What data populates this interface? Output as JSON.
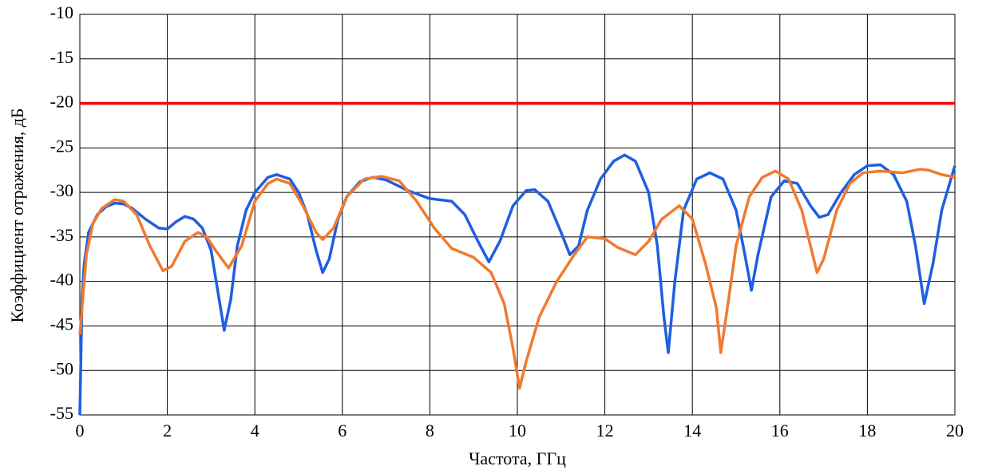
{
  "chart_data": {
    "type": "line",
    "xlabel": "Частота, ГГц",
    "ylabel": "Коэффициент отражения, дБ",
    "xlim": [
      0,
      20
    ],
    "xticks": [
      0,
      2,
      4,
      6,
      8,
      10,
      12,
      14,
      16,
      18,
      20
    ],
    "ylim": [
      -55,
      -10
    ],
    "yticks": [
      -55,
      -50,
      -45,
      -40,
      -35,
      -30,
      -25,
      -20,
      -15,
      -10
    ],
    "grid": true,
    "series": [
      {
        "color": "#1f5fe0",
        "x": [
          0,
          0.05,
          0.1,
          0.2,
          0.4,
          0.6,
          0.8,
          1.0,
          1.2,
          1.5,
          1.8,
          2.0,
          2.2,
          2.4,
          2.6,
          2.8,
          3.0,
          3.15,
          3.3,
          3.45,
          3.6,
          3.8,
          4.0,
          4.3,
          4.5,
          4.8,
          5.0,
          5.2,
          5.4,
          5.55,
          5.7,
          5.9,
          6.1,
          6.4,
          6.7,
          7.0,
          7.5,
          8.0,
          8.5,
          8.8,
          9.1,
          9.35,
          9.6,
          9.9,
          10.2,
          10.4,
          10.7,
          11.0,
          11.2,
          11.4,
          11.6,
          11.9,
          12.2,
          12.45,
          12.7,
          13.0,
          13.2,
          13.35,
          13.45,
          13.6,
          13.8,
          14.1,
          14.4,
          14.7,
          15.0,
          15.2,
          15.35,
          15.5,
          15.8,
          16.1,
          16.4,
          16.7,
          16.9,
          17.1,
          17.4,
          17.7,
          18.0,
          18.3,
          18.6,
          18.9,
          19.1,
          19.3,
          19.5,
          19.7,
          20.0
        ],
        "values": [
          -55,
          -42,
          -38,
          -34.5,
          -32.5,
          -31.6,
          -31.2,
          -31.3,
          -31.8,
          -33,
          -34,
          -34.1,
          -33.3,
          -32.7,
          -33,
          -34,
          -36.5,
          -41,
          -45.5,
          -42,
          -36,
          -32,
          -30,
          -28.3,
          -28,
          -28.5,
          -30,
          -32.5,
          -36.5,
          -39,
          -37.5,
          -33,
          -30.5,
          -28.8,
          -28.3,
          -28.6,
          -29.8,
          -30.7,
          -31,
          -32.5,
          -35.5,
          -37.8,
          -35.5,
          -31.5,
          -29.8,
          -29.7,
          -31,
          -34.5,
          -37,
          -36,
          -32,
          -28.5,
          -26.5,
          -25.8,
          -26.5,
          -30,
          -36,
          -44,
          -48,
          -40,
          -32,
          -28.5,
          -27.8,
          -28.5,
          -32,
          -37,
          -41,
          -37,
          -30.5,
          -28.7,
          -29,
          -31.5,
          -32.8,
          -32.5,
          -30,
          -28,
          -27,
          -26.9,
          -28,
          -31,
          -36,
          -42.5,
          -38,
          -32,
          -27
        ]
      },
      {
        "color": "#f07a30",
        "x": [
          0,
          0.05,
          0.15,
          0.3,
          0.5,
          0.8,
          1.0,
          1.3,
          1.6,
          1.9,
          2.1,
          2.4,
          2.7,
          2.9,
          3.1,
          3.4,
          3.7,
          4.0,
          4.3,
          4.5,
          4.8,
          5.1,
          5.4,
          5.55,
          5.8,
          6.1,
          6.5,
          6.9,
          7.3,
          7.7,
          8.1,
          8.5,
          9.0,
          9.4,
          9.7,
          9.9,
          10.05,
          10.2,
          10.5,
          10.9,
          11.3,
          11.6,
          12.0,
          12.3,
          12.7,
          13.0,
          13.3,
          13.7,
          14.0,
          14.3,
          14.55,
          14.65,
          14.8,
          15.0,
          15.3,
          15.6,
          15.9,
          16.2,
          16.5,
          16.7,
          16.85,
          17.0,
          17.3,
          17.6,
          17.9,
          18.3,
          18.8,
          19.2,
          19.4,
          19.7,
          20.0
        ],
        "values": [
          -46,
          -43,
          -37,
          -33.5,
          -31.8,
          -30.8,
          -31,
          -32.5,
          -36,
          -38.8,
          -38.3,
          -35.5,
          -34.5,
          -35,
          -36.5,
          -38.5,
          -36,
          -31,
          -29,
          -28.5,
          -29,
          -31.5,
          -34.5,
          -35.3,
          -34,
          -30.5,
          -28.5,
          -28.2,
          -28.7,
          -31,
          -34,
          -36.3,
          -37.3,
          -39,
          -42.5,
          -47.5,
          -52,
          -49,
          -44,
          -40,
          -37,
          -35,
          -35.2,
          -36.2,
          -37,
          -35.5,
          -33,
          -31.5,
          -33,
          -38,
          -43,
          -48,
          -43,
          -36,
          -30.5,
          -28.3,
          -27.6,
          -28.5,
          -32,
          -36,
          -39,
          -37.5,
          -32,
          -29,
          -27.8,
          -27.6,
          -27.8,
          -27.4,
          -27.5,
          -28,
          -28.3
        ]
      },
      {
        "color": "#ff0000",
        "x": [
          0,
          20
        ],
        "values": [
          -20,
          -20
        ]
      }
    ]
  }
}
